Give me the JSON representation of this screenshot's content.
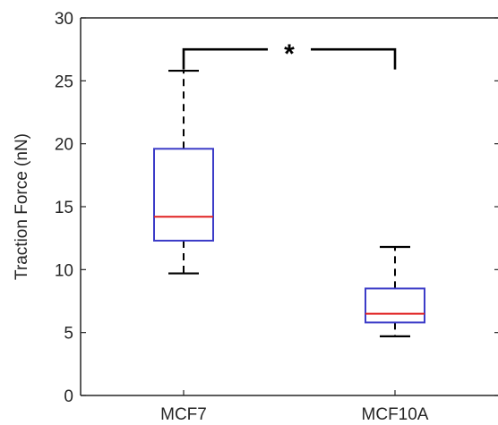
{
  "chart_data": {
    "type": "boxplot",
    "title": "",
    "xlabel": "",
    "ylabel": "Traction Force (nN)",
    "ylim": [
      0,
      30
    ],
    "yticks": [
      0,
      5,
      10,
      15,
      20,
      25,
      30
    ],
    "grid": false,
    "categories": [
      "MCF7",
      "MCF10A"
    ],
    "boxes": [
      {
        "category": "MCF7",
        "whisker_low": 9.7,
        "q1": 12.3,
        "median": 14.2,
        "q3": 19.6,
        "whisker_high": 25.8
      },
      {
        "category": "MCF10A",
        "whisker_low": 4.7,
        "q1": 5.8,
        "median": 6.5,
        "q3": 8.5,
        "whisker_high": 11.8
      }
    ],
    "significance": {
      "between": [
        "MCF7",
        "MCF10A"
      ],
      "label": "*",
      "y": 27.5,
      "drop_to": 25.9
    },
    "colors": {
      "box": "#3c3cc8",
      "median": "#e02020",
      "whisker": "#000000",
      "axis": "#262626"
    }
  }
}
